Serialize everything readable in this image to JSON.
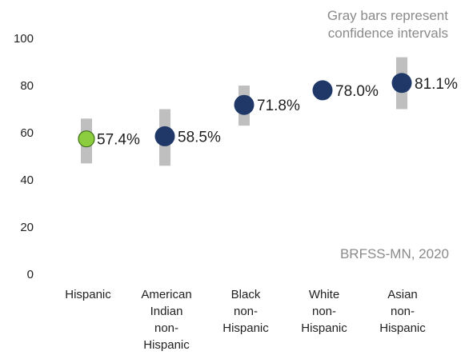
{
  "chart_data": {
    "type": "scatter",
    "categories": [
      "Hispanic",
      "American\nIndian\nnon-\nHispanic",
      "Black\nnon-\nHispanic",
      "White\nnon-\nHispanic",
      "Asian\nnon-\nHispanic"
    ],
    "values": [
      57.4,
      58.5,
      71.8,
      78.0,
      81.1
    ],
    "value_labels": [
      "57.4%",
      "58.5%",
      "71.8%",
      "78.0%",
      "81.1%"
    ],
    "ci_low": [
      47,
      46,
      63,
      76,
      70
    ],
    "ci_high": [
      66,
      70,
      80,
      80,
      92
    ],
    "yticks": [
      "0",
      "20",
      "40",
      "60",
      "80",
      "100"
    ],
    "ylim": [
      0,
      100
    ],
    "grid": false,
    "legend": "none",
    "annotations": {
      "ci_note": "Gray bars represent\nconfidence intervals",
      "source": "BRFSS-MN, 2020"
    },
    "colors": {
      "point": "#1f3868",
      "highlight_point": "#8ccc3f",
      "ci_bar": "#bfbfbf"
    }
  }
}
